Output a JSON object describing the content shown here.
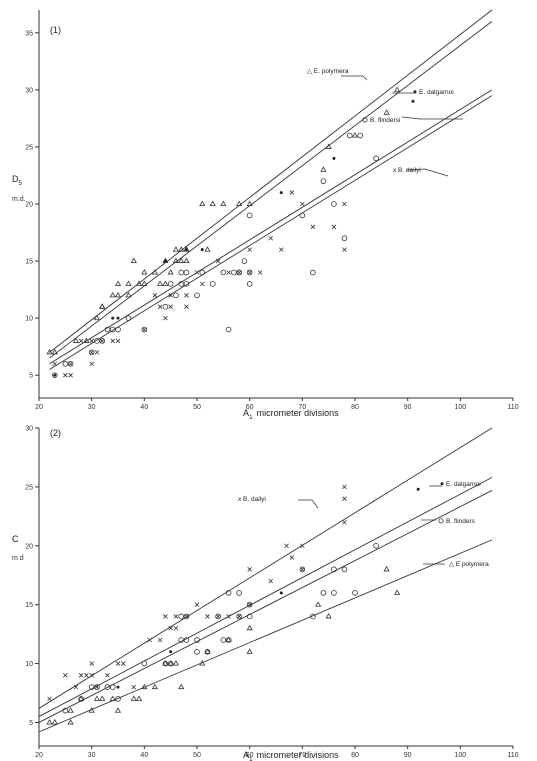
{
  "chart_data": [
    {
      "type": "scatter",
      "panel_label": "(1)",
      "xlabel": "A",
      "xlabel_sub": "1",
      "xlabel_rest": "micrometer divisions",
      "ylabel": "D",
      "ylabel_sub": "5",
      "yunit": "m.d.",
      "xlim": [
        20,
        110
      ],
      "ylim": [
        3,
        37
      ],
      "xticks": [
        20,
        30,
        40,
        50,
        60,
        70,
        80,
        90,
        100,
        110
      ],
      "yticks": [
        5,
        10,
        15,
        20,
        25,
        30,
        35
      ],
      "series": [
        {
          "name": "E. polymera",
          "legend_text": "△ E. polymera",
          "marker": "triangle",
          "line": [
            [
              22,
              7
            ],
            [
              106,
              37
            ]
          ],
          "points": [
            [
              22,
              7
            ],
            [
              23,
              7
            ],
            [
              27,
              8
            ],
            [
              29,
              8
            ],
            [
              31,
              10
            ],
            [
              32,
              11
            ],
            [
              32,
              11
            ],
            [
              34,
              12
            ],
            [
              35,
              12
            ],
            [
              35,
              13
            ],
            [
              37,
              12
            ],
            [
              37,
              13
            ],
            [
              38,
              15
            ],
            [
              39,
              13
            ],
            [
              40,
              13
            ],
            [
              40,
              14
            ],
            [
              42,
              14
            ],
            [
              43,
              13
            ],
            [
              44,
              13
            ],
            [
              44,
              15
            ],
            [
              45,
              14
            ],
            [
              46,
              15
            ],
            [
              46,
              16
            ],
            [
              47,
              15
            ],
            [
              47,
              16
            ],
            [
              48,
              15
            ],
            [
              48,
              16
            ],
            [
              51,
              20
            ],
            [
              52,
              16
            ],
            [
              53,
              20
            ],
            [
              55,
              20
            ],
            [
              58,
              20
            ],
            [
              60,
              20
            ],
            [
              74,
              23
            ],
            [
              75,
              25
            ],
            [
              80,
              26
            ],
            [
              86,
              28
            ],
            [
              88,
              30
            ]
          ]
        },
        {
          "name": "E. dalgarnoi",
          "legend_text": "E. dalgarnoi",
          "marker": "dot",
          "line": [
            [
              22,
              6.5
            ],
            [
              106,
              36
            ]
          ],
          "points": [
            [
              23,
              5
            ],
            [
              34,
              10
            ],
            [
              35,
              10
            ],
            [
              44,
              15
            ],
            [
              48,
              16
            ],
            [
              51,
              16
            ],
            [
              66,
              21
            ],
            [
              76,
              24
            ],
            [
              91,
              29
            ]
          ]
        },
        {
          "name": "B. flindersi",
          "legend_text": "B. flindersi",
          "marker": "circle",
          "line": [
            [
              22,
              6
            ],
            [
              106,
              30
            ]
          ],
          "points": [
            [
              23,
              5
            ],
            [
              25,
              6
            ],
            [
              26,
              6
            ],
            [
              30,
              7
            ],
            [
              31,
              8
            ],
            [
              32,
              8
            ],
            [
              33,
              9
            ],
            [
              34,
              9
            ],
            [
              35,
              9
            ],
            [
              37,
              10
            ],
            [
              40,
              9
            ],
            [
              44,
              11
            ],
            [
              45,
              13
            ],
            [
              46,
              12
            ],
            [
              47,
              13
            ],
            [
              47,
              14
            ],
            [
              48,
              13
            ],
            [
              48,
              14
            ],
            [
              50,
              12
            ],
            [
              51,
              14
            ],
            [
              53,
              13
            ],
            [
              55,
              14
            ],
            [
              56,
              9
            ],
            [
              57,
              14
            ],
            [
              58,
              14
            ],
            [
              58,
              14
            ],
            [
              59,
              15
            ],
            [
              60,
              13
            ],
            [
              60,
              14
            ],
            [
              60,
              19
            ],
            [
              70,
              19
            ],
            [
              72,
              14
            ],
            [
              74,
              22
            ],
            [
              76,
              20
            ],
            [
              78,
              17
            ],
            [
              79,
              26
            ],
            [
              81,
              26
            ],
            [
              84,
              24
            ]
          ]
        },
        {
          "name": "B. dailyi",
          "legend_text": "x B. dailyi",
          "marker": "x",
          "line": [
            [
              22,
              5.5
            ],
            [
              106,
              29.5
            ]
          ],
          "points": [
            [
              23,
              6
            ],
            [
              25,
              5
            ],
            [
              26,
              6
            ],
            [
              26,
              5
            ],
            [
              28,
              8
            ],
            [
              30,
              6
            ],
            [
              30,
              7
            ],
            [
              30,
              8
            ],
            [
              31,
              7
            ],
            [
              32,
              8
            ],
            [
              34,
              8
            ],
            [
              35,
              8
            ],
            [
              40,
              9
            ],
            [
              42,
              12
            ],
            [
              43,
              11
            ],
            [
              44,
              10
            ],
            [
              45,
              11
            ],
            [
              45,
              12
            ],
            [
              48,
              11
            ],
            [
              48,
              12
            ],
            [
              50,
              14
            ],
            [
              51,
              13
            ],
            [
              54,
              15
            ],
            [
              56,
              14
            ],
            [
              58,
              14
            ],
            [
              60,
              14
            ],
            [
              60,
              16
            ],
            [
              62,
              14
            ],
            [
              64,
              17
            ],
            [
              66,
              16
            ],
            [
              68,
              21
            ],
            [
              70,
              20
            ],
            [
              72,
              18
            ],
            [
              76,
              18
            ],
            [
              78,
              16
            ],
            [
              78,
              20
            ]
          ]
        }
      ]
    },
    {
      "type": "scatter",
      "panel_label": "(2)",
      "xlabel": "A",
      "xlabel_sub": "1",
      "xlabel_rest": "micrometer divisions",
      "ylabel": "C",
      "yunit": "m d",
      "xlim": [
        20,
        110
      ],
      "ylim": [
        3,
        30
      ],
      "xticks": [
        20,
        30,
        40,
        50,
        60,
        70,
        80,
        90,
        100,
        110
      ],
      "yticks": [
        5,
        10,
        15,
        20,
        25,
        30
      ],
      "series": [
        {
          "name": "E. dalgarnoi",
          "legend_text": "E. dalgarnoi",
          "marker": "dot",
          "line": [
            [
              20,
              5.5
            ],
            [
              106,
              25.8
            ]
          ],
          "points": [
            [
              35,
              8
            ],
            [
              45,
              11
            ],
            [
              66,
              16
            ],
            [
              92,
              24.8
            ]
          ]
        },
        {
          "name": "B. dailyi",
          "legend_text": "x B. dailyi",
          "marker": "x",
          "line": [
            [
              20,
              6.2
            ],
            [
              106,
              30
            ]
          ],
          "points": [
            [
              22,
              7
            ],
            [
              25,
              9
            ],
            [
              27,
              8
            ],
            [
              28,
              9
            ],
            [
              29,
              9
            ],
            [
              30,
              10
            ],
            [
              30,
              9
            ],
            [
              31,
              8
            ],
            [
              33,
              9
            ],
            [
              35,
              10
            ],
            [
              36,
              10
            ],
            [
              38,
              8
            ],
            [
              41,
              12
            ],
            [
              43,
              12
            ],
            [
              44,
              14
            ],
            [
              45,
              13
            ],
            [
              46,
              13
            ],
            [
              46,
              14
            ],
            [
              48,
              14
            ],
            [
              50,
              15
            ],
            [
              52,
              14
            ],
            [
              54,
              14
            ],
            [
              56,
              14
            ],
            [
              58,
              14
            ],
            [
              60,
              15
            ],
            [
              60,
              18
            ],
            [
              64,
              17
            ],
            [
              67,
              20
            ],
            [
              68,
              19
            ],
            [
              70,
              20
            ],
            [
              70,
              18
            ],
            [
              78,
              25
            ],
            [
              78,
              24
            ],
            [
              78,
              22
            ]
          ]
        },
        {
          "name": "B. flinders",
          "legend_text": "B. flinders",
          "marker": "circle",
          "line": [
            [
              20,
              5
            ],
            [
              106,
              24.7
            ]
          ],
          "points": [
            [
              25,
              6
            ],
            [
              28,
              7
            ],
            [
              30,
              8
            ],
            [
              31,
              8
            ],
            [
              33,
              8
            ],
            [
              34,
              8
            ],
            [
              35,
              7
            ],
            [
              40,
              10
            ],
            [
              44,
              10
            ],
            [
              45,
              10
            ],
            [
              47,
              12
            ],
            [
              47,
              14
            ],
            [
              48,
              14
            ],
            [
              48,
              12
            ],
            [
              50,
              11
            ],
            [
              50,
              12
            ],
            [
              52,
              11
            ],
            [
              54,
              14
            ],
            [
              55,
              12
            ],
            [
              56,
              16
            ],
            [
              56,
              12
            ],
            [
              58,
              14
            ],
            [
              58,
              16
            ],
            [
              60,
              14
            ],
            [
              60,
              15
            ],
            [
              70,
              18
            ],
            [
              72,
              14
            ],
            [
              74,
              16
            ],
            [
              76,
              18
            ],
            [
              76,
              16
            ],
            [
              78,
              18
            ],
            [
              80,
              16
            ],
            [
              84,
              20
            ]
          ]
        },
        {
          "name": "E polymera",
          "legend_text": "△ E polymera",
          "marker": "triangle",
          "line": [
            [
              20,
              4.2
            ],
            [
              106,
              20.5
            ]
          ],
          "points": [
            [
              22,
              5
            ],
            [
              23,
              5
            ],
            [
              26,
              5
            ],
            [
              26,
              6
            ],
            [
              28,
              7
            ],
            [
              30,
              6
            ],
            [
              31,
              7
            ],
            [
              32,
              7
            ],
            [
              34,
              7
            ],
            [
              35,
              6
            ],
            [
              38,
              7
            ],
            [
              39,
              7
            ],
            [
              40,
              8
            ],
            [
              42,
              8
            ],
            [
              44,
              10
            ],
            [
              45,
              10
            ],
            [
              46,
              10
            ],
            [
              47,
              8
            ],
            [
              51,
              10
            ],
            [
              52,
              11
            ],
            [
              56,
              12
            ],
            [
              60,
              11
            ],
            [
              60,
              13
            ],
            [
              73,
              15
            ],
            [
              75,
              14
            ],
            [
              86,
              18
            ],
            [
              88,
              16
            ]
          ]
        }
      ]
    }
  ]
}
